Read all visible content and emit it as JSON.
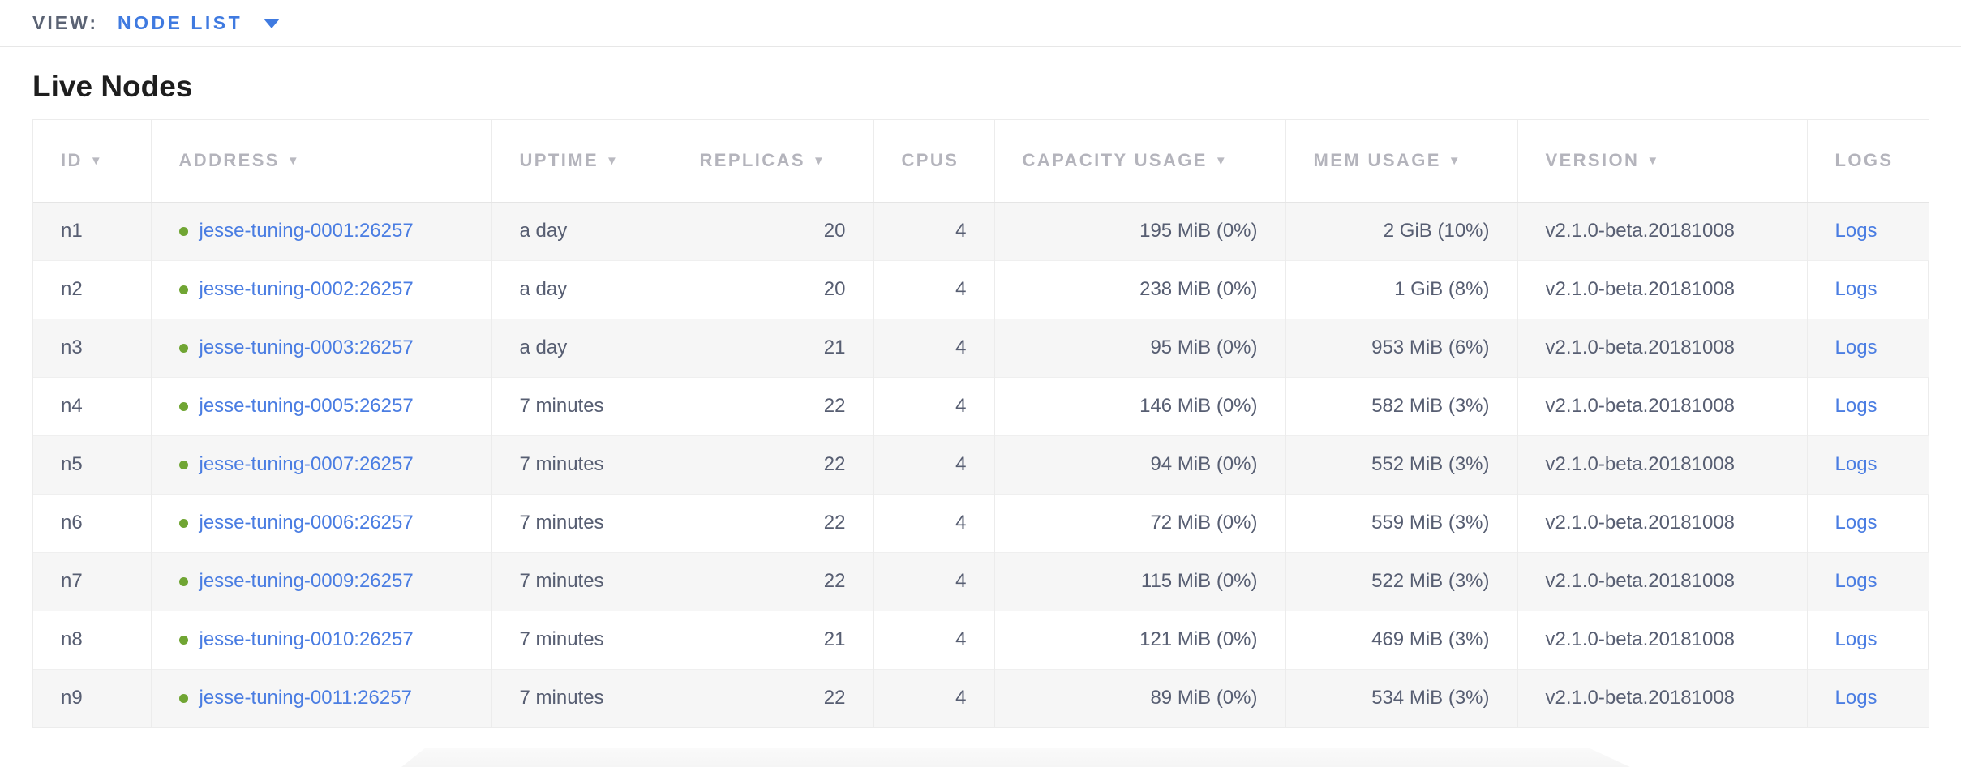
{
  "view_bar": {
    "label": "VIEW:",
    "selected_view": "NODE LIST"
  },
  "page": {
    "title": "Live Nodes"
  },
  "icons": {
    "sort_desc": "▼",
    "dropdown_caret": "▾"
  },
  "colors": {
    "accent": "#3f7ae0",
    "link": "#4a7de2",
    "node_live_dot": "#70a533"
  },
  "table": {
    "columns": [
      {
        "label": "ID",
        "sortable": true
      },
      {
        "label": "ADDRESS",
        "sortable": true
      },
      {
        "label": "UPTIME",
        "sortable": true
      },
      {
        "label": "REPLICAS",
        "sortable": true
      },
      {
        "label": "CPUS",
        "sortable": false
      },
      {
        "label": "CAPACITY USAGE",
        "sortable": true
      },
      {
        "label": "MEM USAGE",
        "sortable": true
      },
      {
        "label": "VERSION",
        "sortable": true
      },
      {
        "label": "LOGS",
        "sortable": false
      }
    ],
    "rows": [
      {
        "id": "n1",
        "address": "jesse-tuning-0001:26257",
        "uptime": "a day",
        "replicas": "20",
        "cpus": "4",
        "capacity": "195 MiB (0%)",
        "mem": "2 GiB (10%)",
        "version": "v2.1.0-beta.20181008",
        "logs": "Logs"
      },
      {
        "id": "n2",
        "address": "jesse-tuning-0002:26257",
        "uptime": "a day",
        "replicas": "20",
        "cpus": "4",
        "capacity": "238 MiB (0%)",
        "mem": "1 GiB (8%)",
        "version": "v2.1.0-beta.20181008",
        "logs": "Logs"
      },
      {
        "id": "n3",
        "address": "jesse-tuning-0003:26257",
        "uptime": "a day",
        "replicas": "21",
        "cpus": "4",
        "capacity": "95 MiB (0%)",
        "mem": "953 MiB (6%)",
        "version": "v2.1.0-beta.20181008",
        "logs": "Logs"
      },
      {
        "id": "n4",
        "address": "jesse-tuning-0005:26257",
        "uptime": "7 minutes",
        "replicas": "22",
        "cpus": "4",
        "capacity": "146 MiB (0%)",
        "mem": "582 MiB (3%)",
        "version": "v2.1.0-beta.20181008",
        "logs": "Logs"
      },
      {
        "id": "n5",
        "address": "jesse-tuning-0007:26257",
        "uptime": "7 minutes",
        "replicas": "22",
        "cpus": "4",
        "capacity": "94 MiB (0%)",
        "mem": "552 MiB (3%)",
        "version": "v2.1.0-beta.20181008",
        "logs": "Logs"
      },
      {
        "id": "n6",
        "address": "jesse-tuning-0006:26257",
        "uptime": "7 minutes",
        "replicas": "22",
        "cpus": "4",
        "capacity": "72 MiB (0%)",
        "mem": "559 MiB (3%)",
        "version": "v2.1.0-beta.20181008",
        "logs": "Logs"
      },
      {
        "id": "n7",
        "address": "jesse-tuning-0009:26257",
        "uptime": "7 minutes",
        "replicas": "22",
        "cpus": "4",
        "capacity": "115 MiB (0%)",
        "mem": "522 MiB (3%)",
        "version": "v2.1.0-beta.20181008",
        "logs": "Logs"
      },
      {
        "id": "n8",
        "address": "jesse-tuning-0010:26257",
        "uptime": "7 minutes",
        "replicas": "21",
        "cpus": "4",
        "capacity": "121 MiB (0%)",
        "mem": "469 MiB (3%)",
        "version": "v2.1.0-beta.20181008",
        "logs": "Logs"
      },
      {
        "id": "n9",
        "address": "jesse-tuning-0011:26257",
        "uptime": "7 minutes",
        "replicas": "22",
        "cpus": "4",
        "capacity": "89 MiB (0%)",
        "mem": "534 MiB (3%)",
        "version": "v2.1.0-beta.20181008",
        "logs": "Logs"
      }
    ]
  }
}
